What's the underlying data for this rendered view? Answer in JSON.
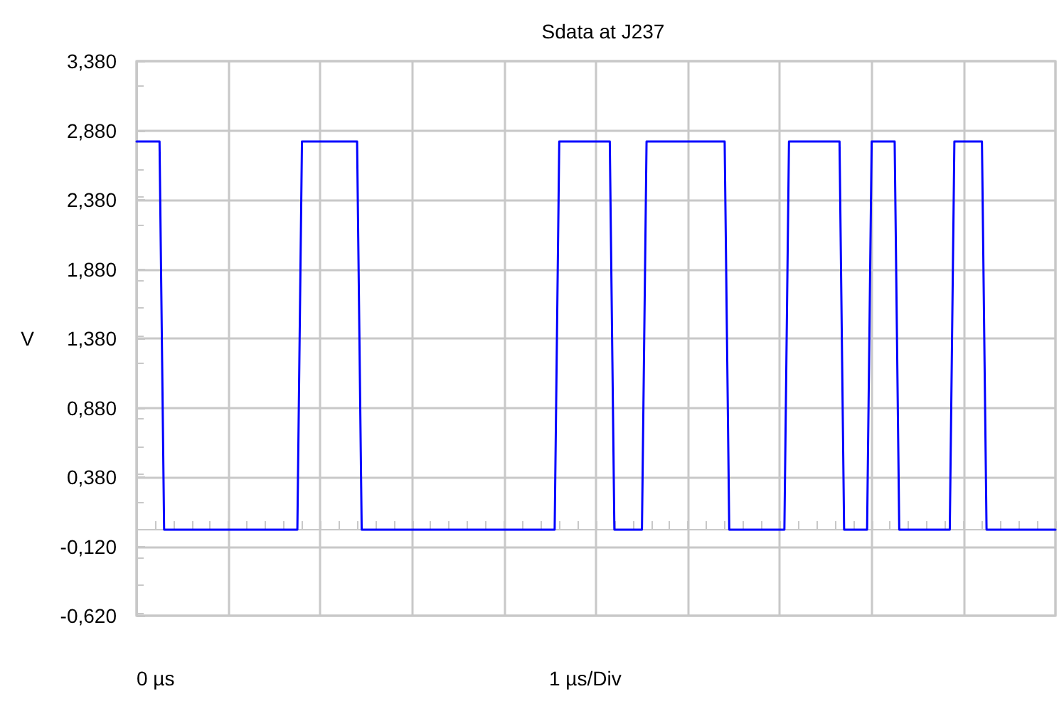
{
  "chart_data": {
    "type": "line",
    "title": "Sdata at J237",
    "xlabel": "1 µs/Div",
    "ylabel": "V",
    "annotations": [
      "0 µs"
    ],
    "categories": [
      null,
      null,
      null,
      null,
      null,
      null,
      null,
      null,
      null,
      null,
      null,
      null,
      null,
      null,
      null,
      null,
      null,
      null,
      null,
      null,
      null,
      null,
      null,
      null,
      null,
      null,
      null,
      null,
      null,
      null,
      null,
      null,
      null,
      null,
      null,
      null,
      null,
      null,
      null,
      null,
      null,
      null,
      null,
      null,
      null,
      null,
      null,
      null,
      null,
      null,
      null,
      null,
      null,
      null,
      null,
      null,
      null,
      null,
      null,
      null,
      null,
      null,
      null,
      null,
      null,
      null,
      null,
      null,
      null,
      null,
      null,
      null,
      null,
      null,
      null,
      null,
      null,
      null,
      null,
      null,
      null,
      null,
      null,
      null,
      null,
      null,
      null,
      null,
      null,
      null,
      null,
      null,
      null,
      null,
      null,
      null,
      null,
      null,
      null,
      null,
      null,
      null,
      null,
      null,
      null,
      null,
      null,
      null,
      null,
      null,
      null,
      null,
      null,
      null,
      null,
      null,
      null,
      null,
      null,
      null,
      null,
      null,
      null,
      null,
      null,
      null,
      null,
      null,
      null,
      null,
      null,
      null,
      null,
      null,
      null,
      null,
      null,
      null,
      null,
      null,
      null,
      null,
      null,
      null,
      null,
      null,
      null,
      null,
      null,
      null,
      null,
      null,
      null,
      null,
      null,
      null,
      null,
      null,
      null,
      null,
      null,
      null,
      null,
      null,
      null,
      null,
      null,
      null,
      null,
      null,
      null,
      null,
      null,
      null,
      null,
      null,
      null,
      null,
      null,
      null,
      null,
      null,
      null,
      null,
      null,
      null,
      null,
      null,
      null,
      null,
      null,
      null,
      null,
      null,
      null,
      null,
      null,
      null,
      null,
      null,
      null
    ],
    "series": [
      {
        "color": "#0000ff",
        "values": [
          2.8,
          2.8,
          2.8,
          2.8,
          2.8,
          2.8,
          0,
          0,
          0,
          0,
          0,
          0,
          0,
          0,
          0,
          0,
          0,
          0,
          0,
          0,
          0,
          0,
          0,
          0,
          0,
          0,
          0,
          0,
          0,
          0,
          0,
          0,
          0,
          0,
          0,
          0,
          2.8,
          2.8,
          2.8,
          2.8,
          2.8,
          2.8,
          2.8,
          2.8,
          2.8,
          2.8,
          2.8,
          2.8,
          2.8,
          0,
          0,
          0,
          0,
          0,
          0,
          0,
          0,
          0,
          0,
          0,
          0,
          0,
          0,
          0,
          0,
          0,
          0,
          0,
          0,
          0,
          0,
          0,
          0,
          0,
          0,
          0,
          0,
          0,
          0,
          0,
          0,
          0,
          0,
          0,
          0,
          0,
          0,
          0,
          0,
          0,
          0,
          0,
          2.8,
          2.8,
          2.8,
          2.8,
          2.8,
          2.8,
          2.8,
          2.8,
          2.8,
          2.8,
          2.8,
          2.8,
          0,
          0,
          0,
          0,
          0,
          0,
          0,
          2.8,
          2.8,
          2.8,
          2.8,
          2.8,
          2.8,
          2.8,
          2.8,
          2.8,
          2.8,
          2.8,
          2.8,
          2.8,
          2.8,
          2.8,
          2.8,
          2.8,
          2.8,
          0,
          0,
          0,
          0,
          0,
          0,
          0,
          0,
          0,
          0,
          0,
          0,
          0,
          2.8,
          2.8,
          2.8,
          2.8,
          2.8,
          2.8,
          2.8,
          2.8,
          2.8,
          2.8,
          2.8,
          2.8,
          0,
          0,
          0,
          0,
          0,
          0,
          2.8,
          2.8,
          2.8,
          2.8,
          2.8,
          2.8,
          0,
          0,
          0,
          0,
          0,
          0,
          0,
          0,
          0,
          0,
          0,
          0,
          2.8,
          2.8,
          2.8,
          2.8,
          2.8,
          2.8,
          2.8,
          0,
          0,
          0,
          0,
          0,
          0,
          0,
          0,
          0,
          0,
          0,
          0,
          0,
          0,
          0,
          0
        ]
      }
    ],
    "ylim": [
      -0.62,
      3.38
    ],
    "yticks": [
      {
        "value": -0.62,
        "label": "-0,620"
      },
      {
        "value": -0.12,
        "label": "-0,120"
      },
      {
        "value": 0.38,
        "label": "0,380"
      },
      {
        "value": 0.88,
        "label": "0,880"
      },
      {
        "value": 1.38,
        "label": "1,380"
      },
      {
        "value": 1.88,
        "label": "1,880"
      },
      {
        "value": 2.38,
        "label": "2,380"
      },
      {
        "value": 2.88,
        "label": "2,880"
      },
      {
        "value": 3.38,
        "label": "3,380"
      }
    ],
    "tick_labels": "y",
    "grid": true,
    "line_style": "solid"
  }
}
